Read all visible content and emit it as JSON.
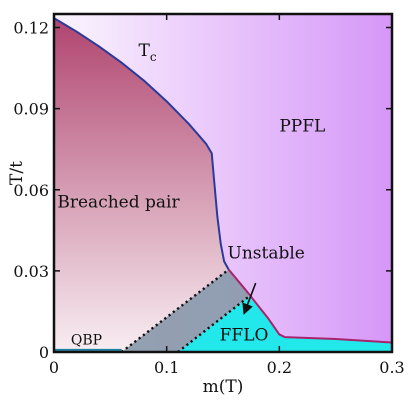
{
  "chart_data": {
    "type": "area",
    "title": "",
    "xlabel": "m(T)",
    "ylabel": "T/t",
    "xlim": [
      0,
      0.3
    ],
    "ylim": [
      0,
      0.125
    ],
    "x_ticks": [
      0,
      0.1,
      0.2,
      0.3
    ],
    "x_tick_labels": [
      "0",
      "0.1",
      "0.2",
      "0.3"
    ],
    "y_ticks": [
      0,
      0.03,
      0.06,
      0.09,
      0.12
    ],
    "y_tick_labels": [
      "0",
      "0.03",
      "0.06",
      "0.09",
      "0.12"
    ],
    "grid": false,
    "legend": "none",
    "series": [
      {
        "name": "T_c",
        "role": "critical-temperature",
        "points": [
          [
            0,
            0.1235
          ],
          [
            0.02,
            0.1185
          ],
          [
            0.04,
            0.113
          ],
          [
            0.06,
            0.107
          ],
          [
            0.08,
            0.1003
          ],
          [
            0.1,
            0.0927
          ],
          [
            0.12,
            0.0842
          ],
          [
            0.135,
            0.077
          ],
          [
            0.14,
            0.0735
          ],
          [
            0.142,
            0.064
          ],
          [
            0.145,
            0.05
          ],
          [
            0.148,
            0.04
          ],
          [
            0.151,
            0.0335
          ],
          [
            0.155,
            0.0305
          ]
        ]
      },
      {
        "name": "FFLO boundary",
        "role": "fflo-upper-boundary",
        "points": [
          [
            0.155,
            0.0305
          ],
          [
            0.17,
            0.023
          ],
          [
            0.19,
            0.0125
          ],
          [
            0.2,
            0.0065
          ],
          [
            0.205,
            0.0055
          ],
          [
            0.25,
            0.0048
          ],
          [
            0.3,
            0.0035
          ]
        ]
      },
      {
        "name": "Unstable boundary left",
        "role": "dotted-line",
        "points": [
          [
            0.06,
            0.0
          ],
          [
            0.155,
            0.0305
          ]
        ]
      },
      {
        "name": "Unstable boundary right",
        "role": "dotted-line",
        "points": [
          [
            0.11,
            0.0
          ],
          [
            0.173,
            0.0205
          ]
        ]
      },
      {
        "name": "QBP boundary",
        "role": "qbp-line",
        "points": [
          [
            0.0,
            0.0008
          ],
          [
            0.06,
            0.0008
          ]
        ]
      }
    ],
    "annotations": [
      {
        "id": "tc",
        "text": "T",
        "subscript": "c",
        "x": 0.075,
        "y": 0.1095
      },
      {
        "id": "ppfl",
        "text": "PPFL",
        "x": 0.2,
        "y": 0.0815
      },
      {
        "id": "breached-pair",
        "text": "Breached pair",
        "x": 0.003,
        "y": 0.0535
      },
      {
        "id": "unstable",
        "text": "Unstable",
        "x": 0.154,
        "y": 0.0345
      },
      {
        "id": "fflo",
        "text": "FFLO",
        "x": 0.147,
        "y": 0.0043
      },
      {
        "id": "qbp",
        "text": "QBP",
        "x": 0.015,
        "y": 0.0028
      }
    ],
    "unstable_arrow": {
      "from": [
        0.179,
        0.0255
      ],
      "to": [
        0.169,
        0.0145
      ]
    },
    "colors": {
      "tc_line": "#2a3a9a",
      "fflo_line": "#a8246c",
      "breached_top": "#b0456f",
      "breached_bottom": "#f8eef2",
      "ppfl_left": "#fbf5fe",
      "ppfl_right": "#d697f8",
      "fflo_fill": "#22e8ec",
      "unstable_fill": "#8899a8",
      "qbp_line": "#1a7fa0"
    }
  }
}
